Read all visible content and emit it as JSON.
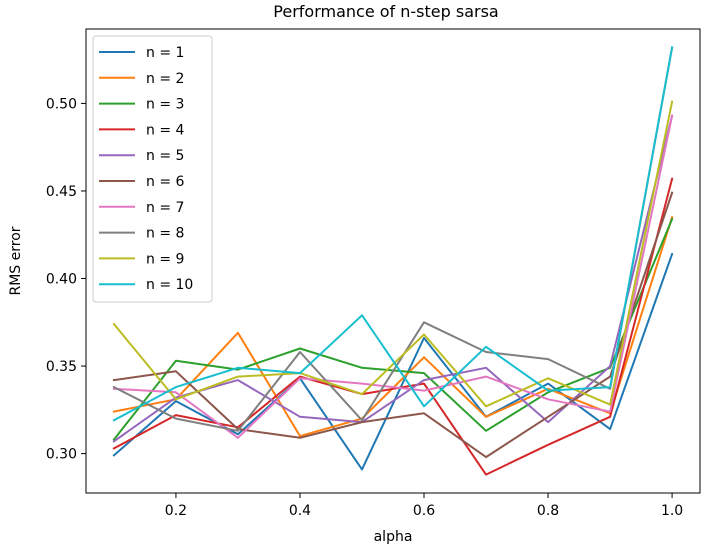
{
  "chart_data": {
    "type": "line",
    "title": "Performance of n-step sarsa",
    "xlabel": "alpha",
    "ylabel": "RMS error",
    "xlim": [
      0.055,
      1.045
    ],
    "ylim": [
      0.2775,
      0.5425
    ],
    "xticks": [
      "0.2",
      "0.4",
      "0.6",
      "0.8",
      "1.0"
    ],
    "xtick_values": [
      0.2,
      0.4,
      0.6,
      0.8,
      1.0
    ],
    "yticks": [
      "0.30",
      "0.35",
      "0.40",
      "0.45",
      "0.50"
    ],
    "ytick_values": [
      0.3,
      0.35,
      0.4,
      0.45,
      0.5
    ],
    "grid": false,
    "legend_position": "top-left",
    "x": [
      0.1,
      0.2,
      0.3,
      0.4,
      0.5,
      0.6,
      0.7,
      0.8,
      0.9,
      1.0
    ],
    "series": [
      {
        "name": "n = 1",
        "color": "#1f77b4",
        "values": [
          0.299,
          0.33,
          0.311,
          0.343,
          0.291,
          0.366,
          0.321,
          0.34,
          0.314,
          0.414
        ]
      },
      {
        "name": "n = 2",
        "color": "#ff7f0e",
        "values": [
          0.324,
          0.331,
          0.369,
          0.31,
          0.32,
          0.355,
          0.321,
          0.337,
          0.323,
          0.435
        ]
      },
      {
        "name": "n = 3",
        "color": "#2ca02c",
        "values": [
          0.308,
          0.353,
          0.348,
          0.36,
          0.349,
          0.346,
          0.313,
          0.335,
          0.349,
          0.434
        ]
      },
      {
        "name": "n = 4",
        "color": "#d62728",
        "values": [
          0.303,
          0.322,
          0.315,
          0.344,
          0.334,
          0.34,
          0.288,
          0.305,
          0.321,
          0.457
        ]
      },
      {
        "name": "n = 5",
        "color": "#9467bd",
        "values": [
          0.307,
          0.332,
          0.342,
          0.321,
          0.318,
          0.342,
          0.349,
          0.318,
          0.35,
          0.493
        ]
      },
      {
        "name": "n = 6",
        "color": "#8c564b",
        "values": [
          0.342,
          0.347,
          0.314,
          0.309,
          0.318,
          0.323,
          0.298,
          0.321,
          0.344,
          0.449
        ]
      },
      {
        "name": "n = 7",
        "color": "#e377c2",
        "values": [
          0.337,
          0.335,
          0.309,
          0.343,
          0.34,
          0.336,
          0.344,
          0.331,
          0.324,
          0.493
        ]
      },
      {
        "name": "n = 8",
        "color": "#7f7f7f",
        "values": [
          0.338,
          0.32,
          0.313,
          0.358,
          0.319,
          0.375,
          0.358,
          0.354,
          0.337,
          0.532
        ]
      },
      {
        "name": "n = 9",
        "color": "#bcbd22",
        "values": [
          0.374,
          0.331,
          0.344,
          0.346,
          0.334,
          0.368,
          0.327,
          0.343,
          0.328,
          0.501
        ]
      },
      {
        "name": "n = 10",
        "color": "#17becf",
        "values": [
          0.319,
          0.338,
          0.349,
          0.346,
          0.379,
          0.327,
          0.361,
          0.336,
          0.338,
          0.532
        ]
      }
    ]
  }
}
